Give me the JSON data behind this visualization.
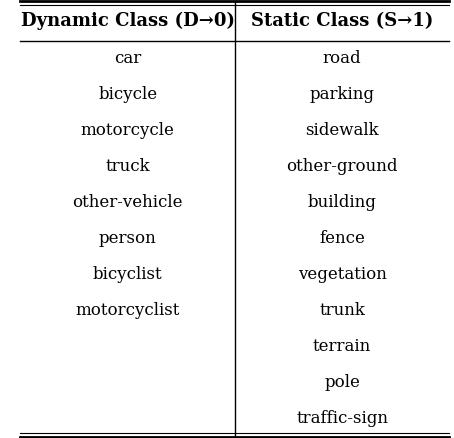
{
  "col1_header": "Dynamic Class (D→0)",
  "col2_header": "Static Class (S→1)",
  "col1_items": [
    "car",
    "bicycle",
    "motorcycle",
    "truck",
    "other-vehicle",
    "person",
    "bicyclist",
    "motorcyclist"
  ],
  "col2_items": [
    "road",
    "parking",
    "sidewalk",
    "other-ground",
    "building",
    "fence",
    "vegetation",
    "trunk",
    "terrain",
    "pole",
    "traffic-sign"
  ],
  "bg_color": "#ffffff",
  "text_color": "#000000",
  "header_fontsize": 13,
  "item_fontsize": 12,
  "fig_width": 4.54,
  "fig_height": 4.38
}
